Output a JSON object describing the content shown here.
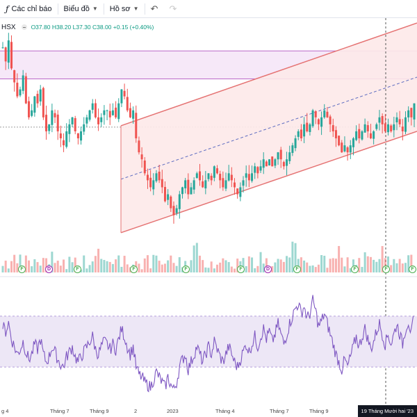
{
  "toolbar": {
    "indicators_label": "Các chỉ báo",
    "chart_label": "Biểu đồ",
    "profile_label": "Hồ sơ"
  },
  "legend": {
    "exchange": "HSX",
    "open": "O37.80",
    "high": "H38.20",
    "low": "L37.30",
    "close": "C38.00",
    "change": "+0.15 (+0.40%)"
  },
  "time_axis": {
    "labels": [
      "g 4",
      "Tháng 7",
      "Tháng 9",
      "2",
      "2023",
      "Tháng 4",
      "Tháng 7",
      "Tháng 9"
    ],
    "cursor_label": "19 Tháng Mười hai '23"
  },
  "events": [
    {
      "type": "F"
    },
    {
      "type": "D"
    },
    {
      "type": "F"
    },
    {
      "type": "F"
    },
    {
      "type": "F"
    },
    {
      "type": "F"
    },
    {
      "type": "D"
    },
    {
      "type": "F"
    },
    {
      "type": "F"
    },
    {
      "type": "F"
    },
    {
      "type": "F"
    }
  ],
  "colors": {
    "up": "#26a69a",
    "down": "#ef5350",
    "channel": "#e57373",
    "channel_fill": "#fde9e9",
    "zone": "#ba68c8",
    "zone_fill": "#f6e8f8",
    "rsi_line": "#7e57c2",
    "rsi_band": "#ede7f6",
    "midline": "#5c6bc0"
  },
  "chart_data": {
    "type": "candlestick",
    "close": [
      43,
      41,
      44,
      40,
      38,
      36,
      37,
      39,
      35,
      33,
      34,
      36,
      35,
      37,
      33,
      31,
      32,
      34,
      33,
      31,
      30,
      29,
      31,
      32,
      33,
      31,
      30,
      31,
      32,
      33,
      34,
      35,
      33,
      32,
      33,
      34,
      34,
      33,
      34,
      33,
      35,
      37,
      36,
      34,
      33,
      34,
      30,
      28,
      27,
      25,
      24,
      23,
      24,
      25,
      24,
      23,
      21,
      22,
      20,
      19,
      20,
      22,
      23,
      24,
      22,
      23,
      24,
      25,
      24,
      23,
      24,
      25,
      24,
      26,
      25,
      24,
      23,
      24,
      25,
      24,
      23,
      22,
      23,
      24,
      25,
      24,
      25,
      26,
      25,
      26,
      27,
      26,
      27,
      26,
      27,
      28,
      27,
      26,
      27,
      28,
      29,
      30,
      31,
      30,
      32,
      31,
      32,
      34,
      33,
      32,
      33,
      34,
      33,
      32,
      31,
      30,
      29,
      28,
      29,
      28,
      29,
      30,
      31,
      30,
      31,
      32,
      31,
      30,
      31,
      32,
      33,
      32,
      31,
      32,
      31,
      32,
      33,
      32,
      31,
      33,
      34,
      33,
      35
    ],
    "rsi": [
      62,
      58,
      65,
      52,
      46,
      40,
      44,
      50,
      42,
      36,
      40,
      48,
      44,
      52,
      40,
      34,
      38,
      46,
      42,
      36,
      32,
      30,
      38,
      42,
      46,
      38,
      34,
      38,
      42,
      46,
      50,
      54,
      44,
      40,
      46,
      50,
      48,
      44,
      48,
      44,
      52,
      60,
      54,
      46,
      40,
      46,
      30,
      24,
      22,
      18,
      16,
      14,
      20,
      26,
      22,
      18,
      14,
      22,
      16,
      12,
      18,
      30,
      36,
      40,
      28,
      34,
      40,
      46,
      40,
      34,
      40,
      46,
      40,
      50,
      44,
      38,
      34,
      40,
      46,
      40,
      34,
      30,
      36,
      42,
      48,
      42,
      48,
      54,
      46,
      54,
      60,
      52,
      58,
      50,
      56,
      64,
      56,
      48,
      56,
      64,
      70,
      76,
      80,
      72,
      78,
      68,
      72,
      82,
      74,
      62,
      66,
      72,
      64,
      56,
      48,
      40,
      34,
      28,
      36,
      30,
      38,
      46,
      54,
      46,
      54,
      60,
      52,
      44,
      50,
      58,
      64,
      56,
      48,
      56,
      48,
      56,
      64,
      56,
      48,
      60,
      66,
      56,
      70
    ],
    "channel": {
      "upper_start": 31.8,
      "upper_end": 46.5,
      "lower_start": 16.5,
      "lower_end": 31.0
    },
    "zone": {
      "top": 42.5,
      "bottom": 38.5
    },
    "horizontal_level": 31.6,
    "rsi_band": [
      30,
      70
    ]
  }
}
